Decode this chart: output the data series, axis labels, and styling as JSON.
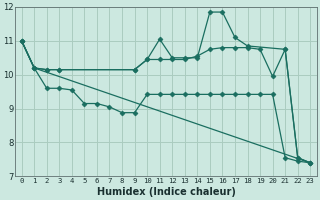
{
  "xlabel": "Humidex (Indice chaleur)",
  "background_color": "#cce8e0",
  "grid_color": "#aaccbf",
  "line_color": "#1a6e60",
  "xlim": [
    -0.5,
    23.5
  ],
  "ylim": [
    7,
    12
  ],
  "yticks": [
    7,
    8,
    9,
    10,
    11,
    12
  ],
  "xticks": [
    0,
    1,
    2,
    3,
    4,
    5,
    6,
    7,
    8,
    9,
    10,
    11,
    12,
    13,
    14,
    15,
    16,
    17,
    18,
    19,
    20,
    21,
    22,
    23
  ],
  "series": [
    {
      "x": [
        0,
        1,
        2,
        3,
        9,
        10,
        11,
        12,
        13,
        14,
        15,
        16,
        17,
        18,
        21,
        22,
        23
      ],
      "y": [
        11.0,
        10.2,
        10.15,
        10.15,
        10.15,
        10.45,
        11.05,
        10.5,
        10.5,
        10.5,
        11.85,
        11.85,
        11.1,
        10.85,
        10.75,
        7.55,
        7.4
      ],
      "marker": "D",
      "markersize": 2.5,
      "linewidth": 0.9
    },
    {
      "x": [
        0,
        1,
        2,
        3,
        9,
        10,
        11,
        12,
        13,
        14,
        15,
        16,
        17,
        18,
        19,
        20,
        21,
        22,
        23
      ],
      "y": [
        11.0,
        10.2,
        10.15,
        10.15,
        10.15,
        10.45,
        10.45,
        10.45,
        10.45,
        10.55,
        10.75,
        10.8,
        10.8,
        10.8,
        10.75,
        9.95,
        10.75,
        7.55,
        7.4
      ],
      "marker": "D",
      "markersize": 2.5,
      "linewidth": 0.9
    },
    {
      "x": [
        0,
        1,
        2,
        3,
        4,
        5,
        6,
        7,
        8,
        9,
        10,
        11,
        12,
        13,
        14,
        15,
        16,
        17,
        18,
        19,
        20,
        21,
        22,
        23
      ],
      "y": [
        11.0,
        10.2,
        9.6,
        9.6,
        9.55,
        9.15,
        9.15,
        9.05,
        8.88,
        8.88,
        9.42,
        9.42,
        9.42,
        9.42,
        9.42,
        9.42,
        9.42,
        9.42,
        9.42,
        9.42,
        9.42,
        7.55,
        7.45,
        7.4
      ],
      "marker": "D",
      "markersize": 2.5,
      "linewidth": 0.9
    },
    {
      "x": [
        0,
        1,
        23
      ],
      "y": [
        11.0,
        10.2,
        7.4
      ],
      "marker": null,
      "markersize": 0,
      "linewidth": 0.9
    }
  ]
}
